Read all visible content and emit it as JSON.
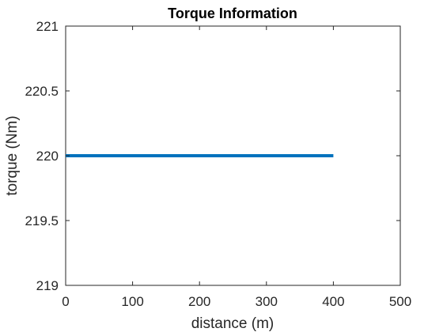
{
  "chart_data": {
    "type": "line",
    "title": "Torque Information",
    "xlabel": "distance (m)",
    "ylabel": "torque (Nm)",
    "xlim": [
      0,
      500
    ],
    "ylim": [
      219,
      221
    ],
    "xticks": [
      0,
      100,
      200,
      300,
      400,
      500
    ],
    "yticks": [
      219,
      219.5,
      220,
      220.5,
      221
    ],
    "xtick_labels": [
      "0",
      "100",
      "200",
      "300",
      "400",
      "500"
    ],
    "ytick_labels": [
      "219",
      "219.5",
      "220",
      "220.5",
      "221"
    ],
    "grid": false,
    "line_color": "#0072BD",
    "series": [
      {
        "x": [
          0,
          400
        ],
        "y": [
          220,
          220
        ]
      }
    ]
  }
}
